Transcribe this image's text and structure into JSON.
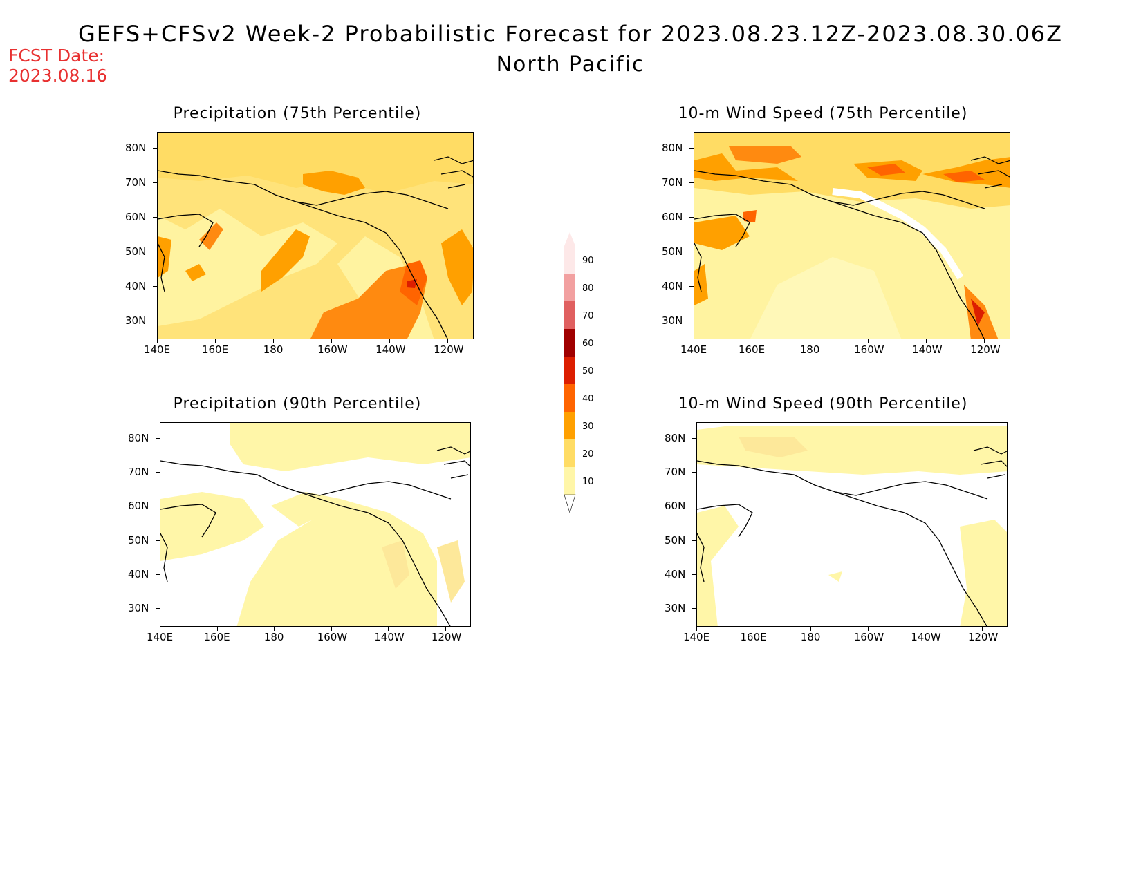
{
  "header": {
    "title": "GEFS+CFSv2 Week-2 Probabilistic Forecast for 2023.08.23.12Z-2023.08.30.06Z",
    "subtitle": "North Pacific",
    "fcst_label": "FCST Date:",
    "fcst_date": "2023.08.16"
  },
  "colorbar": {
    "levels": [
      "90",
      "80",
      "70",
      "60",
      "50",
      "40",
      "30",
      "20",
      "10"
    ],
    "colors": [
      "#fde8e8",
      "#f2a0a0",
      "#e06060",
      "#a00000",
      "#dc1e00",
      "#ff6400",
      "#ffa000",
      "#ffdc64",
      "#fff6a8"
    ]
  },
  "axes": {
    "lat_labels": [
      "80N",
      "70N",
      "60N",
      "50N",
      "40N",
      "30N"
    ],
    "lon_labels": [
      "140E",
      "160E",
      "180",
      "160W",
      "140W",
      "120W"
    ]
  },
  "panels": [
    {
      "id": "precip-75",
      "title": "Precipitation (75th Percentile)"
    },
    {
      "id": "wind-75",
      "title": "10-m Wind Speed (75th Percentile)"
    },
    {
      "id": "precip-90",
      "title": "Precipitation (90th Percentile)"
    },
    {
      "id": "wind-90",
      "title": "10-m Wind Speed (90th Percentile)"
    }
  ]
}
